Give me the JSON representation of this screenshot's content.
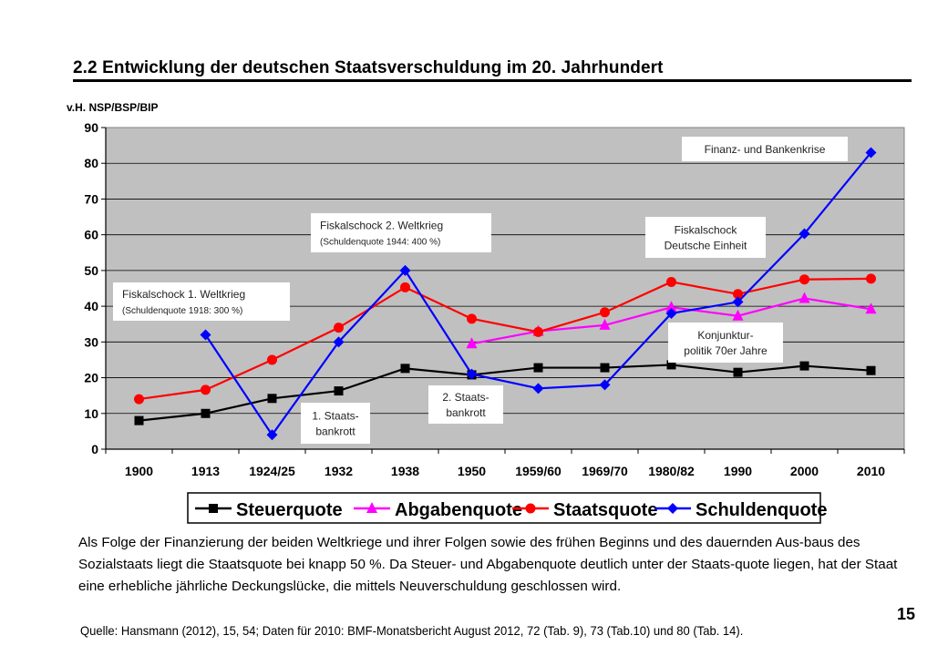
{
  "title": "2.2 Entwicklung der deutschen Staatsverschuldung im 20. Jahrhundert",
  "paragraph": "Als Folge der Finanzierung der beiden Weltkriege und ihrer Folgen sowie des frühen Beginns und des dauernden Aus-baus des Sozialstaats liegt die Staatsquote bei knapp 50 %. Da Steuer- und Abgabenquote deutlich unter der Staats-quote liegen, hat der Staat eine erhebliche jährliche Deckungslücke, die mittels Neuverschuldung geschlossen wird.",
  "source": "Quelle: Hansmann (2012), 15, 54; Daten für 2010: BMF-Monatsbericht August 2012, 72 (Tab. 9), 73 (Tab.10) und 80 (Tab. 14).",
  "page_number": "15",
  "chart_data": {
    "type": "line",
    "ylabel": "v.H. NSP/BSP/BIP",
    "ylim": [
      0,
      90
    ],
    "yticks": [
      0,
      10,
      20,
      30,
      40,
      50,
      60,
      70,
      80,
      90
    ],
    "categories": [
      "1900",
      "1913",
      "1924/25",
      "1932",
      "1938",
      "1950",
      "1959/60",
      "1969/70",
      "1980/82",
      "1990",
      "2000",
      "2010"
    ],
    "grid": true,
    "legend_position": "bottom",
    "series": [
      {
        "name": "Steuerquote",
        "color": "#000000",
        "marker": "square",
        "values": [
          8,
          10,
          14.2,
          16.3,
          22.6,
          20.8,
          22.8,
          22.8,
          23.6,
          21.5,
          23.3,
          22
        ]
      },
      {
        "name": "Abgabenquote",
        "color": "#ff00ff",
        "marker": "triangle",
        "values": [
          null,
          null,
          null,
          null,
          null,
          29.5,
          33,
          34.7,
          39.7,
          37.3,
          42.2,
          39.2
        ]
      },
      {
        "name": "Staatsquote",
        "color": "#ff0000",
        "marker": "circle",
        "values": [
          14,
          16.6,
          25,
          34,
          45.3,
          36.5,
          32.8,
          38.3,
          46.8,
          43.4,
          47.5,
          47.7
        ]
      },
      {
        "name": "Schuldenquote",
        "color": "#0000ff",
        "marker": "diamond",
        "values": [
          null,
          32,
          4,
          30,
          50,
          21,
          17,
          18,
          38,
          41.2,
          60.3,
          83
        ]
      }
    ],
    "annotations": [
      {
        "lines": [
          "Fiskalschock 1. Weltkrieg",
          "(Schuldenquote 1918: 300 %)"
        ]
      },
      {
        "lines": [
          "Fiskalschock 2. Weltkrieg",
          "(Schuldenquote 1944: 400 %)"
        ]
      },
      {
        "lines": [
          "1. Staats-",
          "bankrott"
        ]
      },
      {
        "lines": [
          "2. Staats-",
          "bankrott"
        ]
      },
      {
        "lines": [
          "Fiskalschock",
          "Deutsche Einheit"
        ]
      },
      {
        "lines": [
          "Konjunktur-",
          "politik 70er Jahre"
        ]
      },
      {
        "lines": [
          "Finanz- und Bankenkrise"
        ]
      }
    ]
  }
}
